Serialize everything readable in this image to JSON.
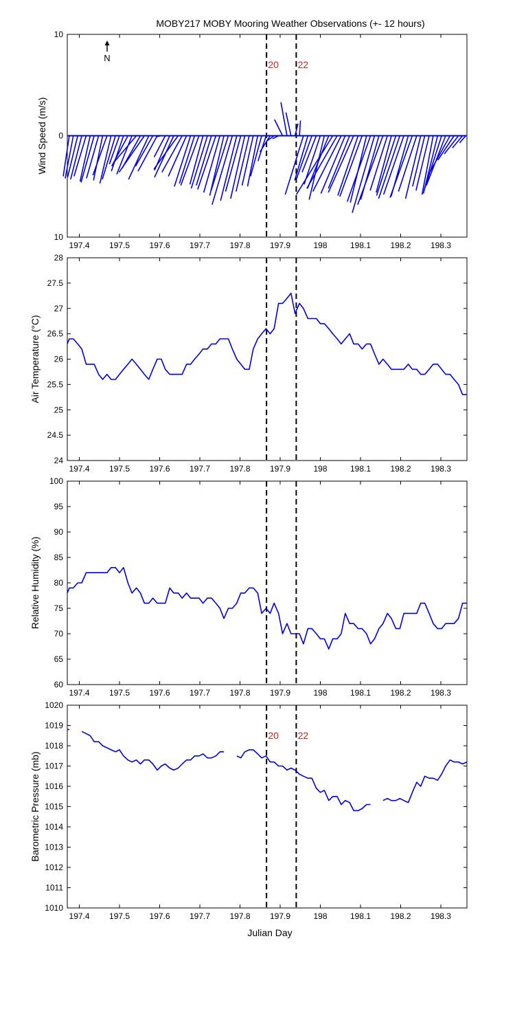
{
  "title": "MOBY217 MOBY Mooring Weather Observations (+- 12 hours)",
  "xlabel": "Julian Day",
  "colors": {
    "series": "#0000dd",
    "marker_label": "#cc2222",
    "axis": "#000000"
  },
  "chart_data": [
    {
      "type": "line",
      "subtype": "wind-vector",
      "ylabel": "Wind Speed (m/s)",
      "xlim": [
        197.37,
        198.365
      ],
      "ylim": [
        -10,
        10
      ],
      "y_ticks": [
        "10",
        "0",
        "10"
      ],
      "x_ticks": [
        "197.4",
        "197.5",
        "197.6",
        "197.7",
        "197.8",
        "197.9",
        "198",
        "198.1",
        "198.2",
        "198.3"
      ],
      "north_label": "N",
      "vertical_markers": [
        {
          "x": 197.866,
          "label": "20"
        },
        {
          "x": 197.94,
          "label": "22"
        }
      ],
      "vectors": [
        [
          197.375,
          -0.6,
          -4.0
        ],
        [
          197.385,
          -0.8,
          -4.2
        ],
        [
          197.396,
          -1.0,
          -4.1
        ],
        [
          197.406,
          -1.1,
          -4.3
        ],
        [
          197.417,
          -1.2,
          -4.0
        ],
        [
          197.427,
          -1.0,
          -4.5
        ],
        [
          197.437,
          -1.3,
          -4.6
        ],
        [
          197.448,
          -1.2,
          -4.2
        ],
        [
          197.458,
          -0.9,
          -4.4
        ],
        [
          197.469,
          -1.4,
          -3.9
        ],
        [
          197.479,
          -1.1,
          -4.7
        ],
        [
          197.49,
          -1.3,
          -4.3
        ],
        [
          197.5,
          -1.0,
          -2.8
        ],
        [
          197.51,
          -1.2,
          -3.5
        ],
        [
          197.521,
          -1.6,
          -3.0
        ],
        [
          197.531,
          -1.5,
          -3.8
        ],
        [
          197.542,
          -2.2,
          -2.6
        ],
        [
          197.552,
          -1.8,
          -3.2
        ],
        [
          197.562,
          -2.5,
          -3.6
        ],
        [
          197.573,
          -2.0,
          -4.3
        ],
        [
          197.583,
          -1.7,
          -3.0
        ],
        [
          197.594,
          -1.9,
          -3.5
        ],
        [
          197.604,
          -0.5,
          -0.1
        ],
        [
          197.614,
          -1.1,
          -2.1
        ],
        [
          197.625,
          -1.5,
          -3.4
        ],
        [
          197.635,
          -1.9,
          -4.1
        ],
        [
          197.646,
          -2.4,
          -3.3
        ],
        [
          197.656,
          -2.0,
          -3.6
        ],
        [
          197.667,
          -1.8,
          -4.0
        ],
        [
          197.677,
          -1.6,
          -5.0
        ],
        [
          197.687,
          -1.5,
          -4.7
        ],
        [
          197.698,
          -1.8,
          -4.9
        ],
        [
          197.708,
          -1.3,
          -4.8
        ],
        [
          197.719,
          -1.6,
          -5.2
        ],
        [
          197.729,
          -1.5,
          -4.9
        ],
        [
          197.74,
          -1.8,
          -5.3
        ],
        [
          197.75,
          -1.6,
          -5.6
        ],
        [
          197.76,
          -1.4,
          -5.9
        ],
        [
          197.771,
          -1.7,
          -5.4
        ],
        [
          197.781,
          -2.0,
          -6.8
        ],
        [
          197.792,
          -1.6,
          -6.4
        ],
        [
          197.802,
          -1.5,
          -5.5
        ],
        [
          197.812,
          -1.4,
          -6.2
        ],
        [
          197.823,
          -1.3,
          -5.5
        ],
        [
          197.833,
          -1.1,
          -4.9
        ],
        [
          197.844,
          -1.0,
          -5.0
        ],
        [
          197.854,
          -1.1,
          -4.0
        ],
        [
          197.865,
          -0.8,
          -2.5
        ],
        [
          197.875,
          -1.0,
          -1.6
        ],
        [
          197.885,
          -0.7,
          -0.5
        ],
        [
          197.896,
          -0.6,
          -0.3
        ],
        [
          197.906,
          -0.8,
          1.6
        ],
        [
          197.917,
          -0.6,
          3.3
        ],
        [
          197.927,
          -0.5,
          2.3
        ],
        [
          197.937,
          0.3,
          1.2
        ],
        [
          197.948,
          0.1,
          1.5
        ],
        [
          197.958,
          -1.8,
          -5.8
        ],
        [
          197.969,
          -1.3,
          -4.4
        ],
        [
          197.979,
          -1.5,
          -4.2
        ],
        [
          197.99,
          -1.4,
          -3.6
        ],
        [
          198.0,
          -1.6,
          -4.8
        ],
        [
          198.01,
          -1.5,
          -6.3
        ],
        [
          198.021,
          -2.1,
          -5.2
        ],
        [
          198.031,
          -3.6,
          -5.8
        ],
        [
          198.042,
          -3.0,
          -5.2
        ],
        [
          198.052,
          -2.8,
          -5.5
        ],
        [
          198.062,
          -2.4,
          -5.7
        ],
        [
          198.073,
          -2.1,
          -5.2
        ],
        [
          198.083,
          -2.5,
          -5.6
        ],
        [
          198.094,
          -2.0,
          -5.9
        ],
        [
          198.104,
          -2.2,
          -6.0
        ],
        [
          198.115,
          -1.6,
          -6.6
        ],
        [
          198.125,
          -2.3,
          -6.5
        ],
        [
          198.135,
          -2.2,
          -7.6
        ],
        [
          198.146,
          -1.8,
          -6.3
        ],
        [
          198.156,
          -2.5,
          -6.8
        ],
        [
          198.167,
          -1.7,
          -5.4
        ],
        [
          198.177,
          -1.5,
          -5.6
        ],
        [
          198.188,
          -1.9,
          -5.9
        ],
        [
          198.198,
          -2.1,
          -6.2
        ],
        [
          198.208,
          -2.0,
          -5.8
        ],
        [
          198.219,
          -1.7,
          -6.0
        ],
        [
          198.229,
          -2.2,
          -6.1
        ],
        [
          198.24,
          -1.8,
          -5.5
        ],
        [
          198.25,
          -1.5,
          -6.2
        ],
        [
          198.26,
          -1.2,
          -5.0
        ],
        [
          198.271,
          -1.3,
          -5.4
        ],
        [
          198.281,
          -1.1,
          -5.8
        ],
        [
          198.292,
          -1.4,
          -5.7
        ],
        [
          198.302,
          -1.7,
          -5.3
        ],
        [
          198.312,
          -1.9,
          -4.9
        ],
        [
          198.323,
          -2.0,
          -3.6
        ],
        [
          198.333,
          -1.6,
          -2.4
        ],
        [
          198.344,
          -1.4,
          -1.8
        ],
        [
          198.354,
          -1.0,
          -1.2
        ],
        [
          198.362,
          -0.6,
          -0.7
        ]
      ]
    },
    {
      "type": "line",
      "ylabel": "Air Temperature (°C)",
      "xlim": [
        197.37,
        198.365
      ],
      "ylim": [
        24,
        28
      ],
      "y_ticks": [
        "28",
        "27.5",
        "27",
        "26.5",
        "26",
        "25.5",
        "25",
        "24.5",
        "24"
      ],
      "x_ticks": [
        "197.4",
        "197.5",
        "197.6",
        "197.7",
        "197.8",
        "197.9",
        "198",
        "198.1",
        "198.2",
        "198.3"
      ],
      "vertical_markers": [
        197.866,
        197.94
      ],
      "x": [
        197.37,
        197.375,
        197.385,
        197.396,
        197.406,
        197.417,
        197.427,
        197.437,
        197.448,
        197.458,
        197.469,
        197.479,
        197.49,
        197.5,
        197.51,
        197.521,
        197.531,
        197.542,
        197.552,
        197.562,
        197.573,
        197.583,
        197.594,
        197.604,
        197.614,
        197.625,
        197.635,
        197.646,
        197.656,
        197.667,
        197.677,
        197.687,
        197.698,
        197.708,
        197.719,
        197.729,
        197.74,
        197.75,
        197.76,
        197.771,
        197.781,
        197.792,
        197.802,
        197.812,
        197.823,
        197.833,
        197.844,
        197.854,
        197.865,
        197.875,
        197.885,
        197.896,
        197.906,
        197.917,
        197.927,
        197.937,
        197.948,
        197.958,
        197.969,
        197.979,
        197.99,
        198.0,
        198.01,
        198.021,
        198.031,
        198.042,
        198.052,
        198.062,
        198.073,
        198.083,
        198.094,
        198.104,
        198.115,
        198.125,
        198.135,
        198.146,
        198.156,
        198.167,
        198.177,
        198.188,
        198.198,
        198.208,
        198.219,
        198.229,
        198.24,
        198.25,
        198.26,
        198.271,
        198.281,
        198.292,
        198.302,
        198.312,
        198.323,
        198.333,
        198.344,
        198.354,
        198.365
      ],
      "y": [
        26.3,
        26.4,
        26.4,
        26.3,
        26.2,
        25.9,
        25.9,
        25.9,
        25.7,
        25.6,
        25.7,
        25.6,
        25.6,
        25.7,
        25.8,
        25.9,
        26.0,
        25.9,
        25.8,
        25.7,
        25.6,
        25.8,
        26.0,
        26.0,
        25.8,
        25.7,
        25.7,
        25.7,
        25.7,
        25.9,
        25.9,
        26.0,
        26.1,
        26.2,
        26.2,
        26.3,
        26.3,
        26.4,
        26.4,
        26.4,
        26.2,
        26.0,
        25.9,
        25.8,
        25.8,
        26.2,
        26.4,
        26.5,
        26.6,
        26.5,
        26.6,
        27.1,
        27.1,
        27.2,
        27.3,
        26.9,
        27.1,
        27.0,
        26.8,
        26.8,
        26.8,
        26.7,
        26.7,
        26.6,
        26.5,
        26.4,
        26.3,
        26.4,
        26.5,
        26.3,
        26.3,
        26.2,
        26.3,
        26.3,
        26.1,
        25.9,
        26.0,
        25.9,
        25.8,
        25.8,
        25.8,
        25.8,
        25.9,
        25.8,
        25.8,
        25.7,
        25.7,
        25.8,
        25.9,
        25.9,
        25.8,
        25.7,
        25.7,
        25.6,
        25.5,
        25.3,
        25.3
      ]
    },
    {
      "type": "line",
      "ylabel": "Relative Humidity (%)",
      "xlim": [
        197.37,
        198.365
      ],
      "ylim": [
        60,
        100
      ],
      "y_ticks": [
        "100",
        "95",
        "90",
        "85",
        "80",
        "75",
        "70",
        "65",
        "60"
      ],
      "x_ticks": [
        "197.4",
        "197.5",
        "197.6",
        "197.7",
        "197.8",
        "197.9",
        "198",
        "198.1",
        "198.2",
        "198.3"
      ],
      "vertical_markers": [
        197.866,
        197.94
      ],
      "x": [
        197.37,
        197.375,
        197.385,
        197.396,
        197.406,
        197.417,
        197.427,
        197.437,
        197.448,
        197.458,
        197.469,
        197.479,
        197.49,
        197.5,
        197.51,
        197.521,
        197.531,
        197.542,
        197.552,
        197.562,
        197.573,
        197.583,
        197.594,
        197.604,
        197.614,
        197.625,
        197.635,
        197.646,
        197.656,
        197.667,
        197.677,
        197.687,
        197.698,
        197.708,
        197.719,
        197.729,
        197.74,
        197.75,
        197.76,
        197.771,
        197.781,
        197.792,
        197.802,
        197.812,
        197.823,
        197.833,
        197.844,
        197.854,
        197.865,
        197.875,
        197.885,
        197.896,
        197.906,
        197.917,
        197.927,
        197.937,
        197.948,
        197.958,
        197.969,
        197.979,
        197.99,
        198.0,
        198.01,
        198.021,
        198.031,
        198.042,
        198.052,
        198.062,
        198.073,
        198.083,
        198.094,
        198.104,
        198.115,
        198.125,
        198.135,
        198.146,
        198.156,
        198.167,
        198.177,
        198.188,
        198.198,
        198.208,
        198.219,
        198.229,
        198.24,
        198.25,
        198.26,
        198.271,
        198.281,
        198.292,
        198.302,
        198.312,
        198.323,
        198.333,
        198.344,
        198.354,
        198.365
      ],
      "y": [
        78,
        79,
        79,
        80,
        80,
        82,
        82,
        82,
        82,
        82,
        82,
        83,
        83,
        82,
        83,
        80,
        78,
        79,
        78,
        76,
        76,
        77,
        76,
        76,
        76,
        79,
        78,
        78,
        77,
        78,
        77,
        77,
        77,
        76,
        77,
        77,
        76,
        75,
        73,
        75,
        75,
        76,
        78,
        78,
        79,
        79,
        78,
        74,
        75,
        74,
        76,
        74,
        70,
        72,
        70,
        70,
        70,
        68,
        71,
        71,
        70,
        69,
        69,
        67,
        69,
        69,
        70,
        74,
        72,
        72,
        71,
        71,
        70,
        68,
        69,
        71,
        72,
        74,
        73,
        71,
        71,
        74,
        74,
        74,
        74,
        76,
        76,
        74,
        72,
        71,
        71,
        72,
        72,
        72,
        73,
        76,
        76
      ]
    },
    {
      "type": "line",
      "ylabel": "Barometric Pressure (mb)",
      "xlim": [
        197.37,
        198.365
      ],
      "ylim": [
        1010,
        1020
      ],
      "y_ticks": [
        "1020",
        "1019",
        "1018",
        "1017",
        "1016",
        "1015",
        "1014",
        "1013",
        "1012",
        "1011",
        "1010"
      ],
      "x_ticks": [
        "197.4",
        "197.5",
        "197.6",
        "197.7",
        "197.8",
        "197.9",
        "198",
        "198.1",
        "198.2",
        "198.3"
      ],
      "vertical_markers": [
        {
          "x": 197.866,
          "label": "20"
        },
        {
          "x": 197.94,
          "label": "22"
        }
      ],
      "segments": [
        {
          "x": [
            197.37,
            197.375
          ],
          "y": [
            1018.8,
            1018.8
          ]
        },
        {
          "x": [
            197.406,
            197.417,
            197.427,
            197.437,
            197.448,
            197.458,
            197.469,
            197.479,
            197.49,
            197.5,
            197.51,
            197.521,
            197.531,
            197.542,
            197.552,
            197.562,
            197.573,
            197.583,
            197.594,
            197.604,
            197.614,
            197.625,
            197.635,
            197.646,
            197.656,
            197.667,
            197.677,
            197.687,
            197.698,
            197.708,
            197.719,
            197.729,
            197.74,
            197.75,
            197.76
          ],
          "y": [
            1018.7,
            1018.6,
            1018.5,
            1018.2,
            1018.2,
            1018.0,
            1017.9,
            1017.8,
            1017.7,
            1017.8,
            1017.5,
            1017.3,
            1017.2,
            1017.3,
            1017.1,
            1017.3,
            1017.3,
            1017.1,
            1016.8,
            1017.0,
            1017.1,
            1016.9,
            1016.8,
            1016.9,
            1017.1,
            1017.3,
            1017.3,
            1017.5,
            1017.5,
            1017.6,
            1017.4,
            1017.4,
            1017.5,
            1017.7,
            1017.7
          ]
        },
        {
          "x": [
            197.792,
            197.802,
            197.812,
            197.823,
            197.833,
            197.844,
            197.854,
            197.865,
            197.875,
            197.885,
            197.896,
            197.906,
            197.917,
            197.927,
            197.937,
            197.948,
            197.958,
            197.969,
            197.979,
            197.99,
            198.0,
            198.01,
            198.021,
            198.031,
            198.042,
            198.052,
            198.062,
            198.073,
            198.083,
            198.094,
            198.104,
            198.115,
            198.125
          ],
          "y": [
            1017.5,
            1017.4,
            1017.7,
            1017.8,
            1017.8,
            1017.6,
            1017.4,
            1017.5,
            1017.2,
            1017.2,
            1017.0,
            1017.0,
            1016.8,
            1016.9,
            1016.8,
            1016.6,
            1016.5,
            1016.4,
            1016.4,
            1015.9,
            1015.7,
            1015.8,
            1015.3,
            1015.5,
            1015.5,
            1015.1,
            1015.3,
            1015.2,
            1014.8,
            1014.8,
            1014.9,
            1015.1,
            1015.1
          ]
        },
        {
          "x": [
            198.156,
            198.167,
            198.177,
            198.188,
            198.198,
            198.208,
            198.219,
            198.229,
            198.24,
            198.25,
            198.26,
            198.271,
            198.281,
            198.292,
            198.302,
            198.312,
            198.323,
            198.333,
            198.344,
            198.354,
            198.365
          ],
          "y": [
            1015.3,
            1015.4,
            1015.3,
            1015.3,
            1015.4,
            1015.3,
            1015.2,
            1015.7,
            1016.2,
            1016.0,
            1016.5,
            1016.4,
            1016.4,
            1016.3,
            1016.6,
            1017.0,
            1017.3,
            1017.2,
            1017.2,
            1017.1,
            1017.2
          ]
        }
      ]
    }
  ]
}
